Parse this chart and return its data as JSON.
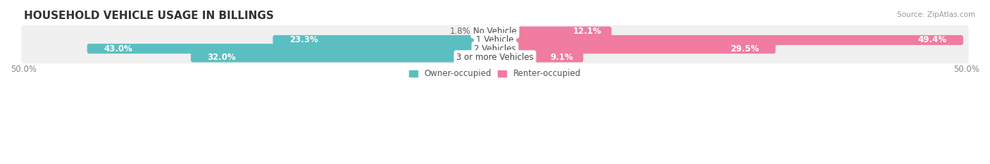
{
  "title": "HOUSEHOLD VEHICLE USAGE IN BILLINGS",
  "source": "Source: ZipAtlas.com",
  "categories": [
    "No Vehicle",
    "1 Vehicle",
    "2 Vehicles",
    "3 or more Vehicles"
  ],
  "owner_values": [
    1.8,
    23.3,
    43.0,
    32.0
  ],
  "renter_values": [
    12.1,
    49.4,
    29.5,
    9.1
  ],
  "owner_color": "#5bbfc2",
  "renter_color": "#f07ca0",
  "owner_color_light": "#a8dfe0",
  "renter_color_light": "#f9bcd1",
  "row_bg_color": "#f0f0f0",
  "axis_max": 50.0,
  "legend_owner": "Owner-occupied",
  "legend_renter": "Renter-occupied",
  "title_fontsize": 11,
  "label_fontsize": 8.5,
  "tick_fontsize": 8.5
}
